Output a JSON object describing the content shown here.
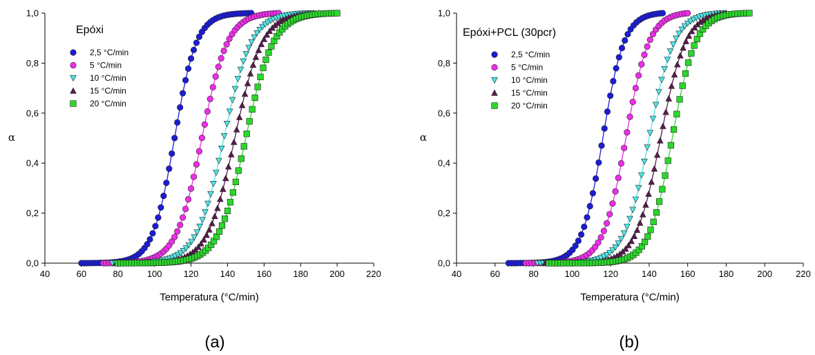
{
  "chart_data": [
    {
      "type": "scatter",
      "title": "Epóxi",
      "caption": "(a)",
      "xlabel": "Temperatura (°C/min)",
      "ylabel": "α",
      "xlim": [
        40,
        220
      ],
      "ylim": [
        0,
        1
      ],
      "xticks": [
        "40",
        "60",
        "80",
        "100",
        "120",
        "140",
        "160",
        "180",
        "200",
        "220"
      ],
      "yticks": [
        "0,0",
        "0,2",
        "0,4",
        "0,6",
        "0,8",
        "1,0"
      ],
      "legend_position": "top-left",
      "series": [
        {
          "name": "2,5 °C/min",
          "color": "#1c1cd6",
          "marker": "circle",
          "x0": 60,
          "x1": 153,
          "xm": 111,
          "scale": 6.0
        },
        {
          "name": "5 °C/min",
          "color": "#ee2ee8",
          "marker": "circle",
          "x0": 72,
          "x1": 168,
          "xm": 126,
          "scale": 7.0
        },
        {
          "name": "10 °C/min",
          "color": "#4fe6e6",
          "marker": "triangle-down",
          "x0": 77,
          "x1": 186,
          "xm": 138,
          "scale": 7.5
        },
        {
          "name": "15 °C/min",
          "color": "#5b1a4d",
          "marker": "triangle-up",
          "x0": 79,
          "x1": 190,
          "xm": 144,
          "scale": 7.5
        },
        {
          "name": "20 °C/min",
          "color": "#2ad82a",
          "marker": "square",
          "x0": 80,
          "x1": 200,
          "xm": 150,
          "scale": 7.5
        }
      ]
    },
    {
      "type": "scatter",
      "title": "Epóxi+PCL (30pcr)",
      "caption": "(b)",
      "xlabel": "Temperatura (°C/min)",
      "ylabel": "α",
      "xlim": [
        40,
        220
      ],
      "ylim": [
        0,
        1
      ],
      "xticks": [
        "40",
        "60",
        "80",
        "100",
        "120",
        "140",
        "160",
        "180",
        "200",
        "220"
      ],
      "yticks": [
        "0,0",
        "0,2",
        "0,4",
        "0,6",
        "0,8",
        "1,0"
      ],
      "legend_position": "top-left",
      "series": [
        {
          "name": "2,5 °C/min",
          "color": "#1c1cd6",
          "marker": "circle",
          "x0": 67,
          "x1": 147,
          "xm": 116,
          "scale": 5.5
        },
        {
          "name": "5 °C/min",
          "color": "#ee2ee8",
          "marker": "circle",
          "x0": 76,
          "x1": 160,
          "xm": 128,
          "scale": 6.0
        },
        {
          "name": "10 °C/min",
          "color": "#4fe6e6",
          "marker": "triangle-down",
          "x0": 82,
          "x1": 178,
          "xm": 140,
          "scale": 6.5
        },
        {
          "name": "15 °C/min",
          "color": "#5b1a4d",
          "marker": "triangle-up",
          "x0": 86,
          "x1": 180,
          "xm": 146,
          "scale": 6.5
        },
        {
          "name": "20 °C/min",
          "color": "#2ad82a",
          "marker": "square",
          "x0": 88,
          "x1": 192,
          "xm": 152,
          "scale": 6.0
        }
      ]
    }
  ]
}
